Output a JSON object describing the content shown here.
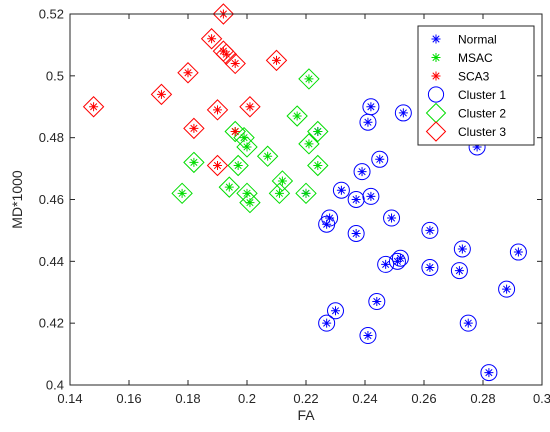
{
  "chart_data": {
    "type": "scatter",
    "title": "",
    "xlabel": "FA",
    "ylabel": "MD*1000",
    "xlim": [
      0.14,
      0.3
    ],
    "ylim": [
      0.4,
      0.52
    ],
    "xticks": [
      0.14,
      0.16,
      0.18,
      0.2,
      0.22,
      0.24,
      0.26,
      0.28,
      0.3
    ],
    "xtick_labels": [
      "0.14",
      "0.16",
      "0.18",
      "0.2",
      "0.22",
      "0.24",
      "0.26",
      "0.28",
      "0.3"
    ],
    "yticks": [
      0.4,
      0.42,
      0.44,
      0.46,
      0.48,
      0.5,
      0.52
    ],
    "ytick_labels": [
      "0.4",
      "0.42",
      "0.44",
      "0.46",
      "0.48",
      "0.5",
      "0.52"
    ],
    "grid": false,
    "legend_position": "top-right",
    "series": [
      {
        "name": "Normal",
        "marker": "asterisk",
        "color": "#0000ff",
        "points": [
          [
            0.242,
            0.49
          ],
          [
            0.241,
            0.485
          ],
          [
            0.253,
            0.488
          ],
          [
            0.224,
            0.482
          ],
          [
            0.22,
            0.462
          ],
          [
            0.278,
            0.477
          ],
          [
            0.245,
            0.473
          ],
          [
            0.239,
            0.469
          ],
          [
            0.232,
            0.463
          ],
          [
            0.242,
            0.461
          ],
          [
            0.237,
            0.46
          ],
          [
            0.249,
            0.454
          ],
          [
            0.228,
            0.454
          ],
          [
            0.227,
            0.452
          ],
          [
            0.262,
            0.45
          ],
          [
            0.237,
            0.449
          ],
          [
            0.273,
            0.444
          ],
          [
            0.292,
            0.443
          ],
          [
            0.252,
            0.441
          ],
          [
            0.251,
            0.44
          ],
          [
            0.247,
            0.439
          ],
          [
            0.262,
            0.438
          ],
          [
            0.272,
            0.437
          ],
          [
            0.288,
            0.431
          ],
          [
            0.244,
            0.427
          ],
          [
            0.23,
            0.424
          ],
          [
            0.227,
            0.42
          ],
          [
            0.275,
            0.42
          ],
          [
            0.241,
            0.416
          ],
          [
            0.282,
            0.404
          ]
        ]
      },
      {
        "name": "MSAC",
        "marker": "asterisk",
        "color": "#00dd00",
        "points": [
          [
            0.221,
            0.499
          ],
          [
            0.217,
            0.487
          ],
          [
            0.224,
            0.482
          ],
          [
            0.196,
            0.482
          ],
          [
            0.199,
            0.48
          ],
          [
            0.221,
            0.478
          ],
          [
            0.2,
            0.477
          ],
          [
            0.207,
            0.474
          ],
          [
            0.182,
            0.472
          ],
          [
            0.224,
            0.471
          ],
          [
            0.197,
            0.471
          ],
          [
            0.212,
            0.466
          ],
          [
            0.194,
            0.464
          ],
          [
            0.178,
            0.462
          ],
          [
            0.211,
            0.462
          ],
          [
            0.2,
            0.462
          ],
          [
            0.22,
            0.462
          ],
          [
            0.201,
            0.459
          ]
        ]
      },
      {
        "name": "SCA3",
        "marker": "asterisk",
        "color": "#ff0000",
        "points": [
          [
            0.192,
            0.52
          ],
          [
            0.188,
            0.512
          ],
          [
            0.192,
            0.508
          ],
          [
            0.193,
            0.507
          ],
          [
            0.196,
            0.504
          ],
          [
            0.21,
            0.505
          ],
          [
            0.18,
            0.501
          ],
          [
            0.171,
            0.494
          ],
          [
            0.148,
            0.49
          ],
          [
            0.201,
            0.49
          ],
          [
            0.19,
            0.489
          ],
          [
            0.182,
            0.483
          ],
          [
            0.196,
            0.482
          ],
          [
            0.19,
            0.471
          ]
        ]
      },
      {
        "name": "Cluster 1",
        "marker": "circle",
        "color": "#0000ff",
        "points": [
          [
            0.242,
            0.49
          ],
          [
            0.241,
            0.485
          ],
          [
            0.253,
            0.488
          ],
          [
            0.278,
            0.477
          ],
          [
            0.245,
            0.473
          ],
          [
            0.239,
            0.469
          ],
          [
            0.232,
            0.463
          ],
          [
            0.242,
            0.461
          ],
          [
            0.237,
            0.46
          ],
          [
            0.249,
            0.454
          ],
          [
            0.228,
            0.454
          ],
          [
            0.227,
            0.452
          ],
          [
            0.262,
            0.45
          ],
          [
            0.237,
            0.449
          ],
          [
            0.273,
            0.444
          ],
          [
            0.292,
            0.443
          ],
          [
            0.252,
            0.441
          ],
          [
            0.251,
            0.44
          ],
          [
            0.247,
            0.439
          ],
          [
            0.262,
            0.438
          ],
          [
            0.272,
            0.437
          ],
          [
            0.288,
            0.431
          ],
          [
            0.244,
            0.427
          ],
          [
            0.23,
            0.424
          ],
          [
            0.227,
            0.42
          ],
          [
            0.275,
            0.42
          ],
          [
            0.241,
            0.416
          ],
          [
            0.282,
            0.404
          ]
        ]
      },
      {
        "name": "Cluster 2",
        "marker": "diamond",
        "color": "#00dd00",
        "points": [
          [
            0.221,
            0.499
          ],
          [
            0.217,
            0.487
          ],
          [
            0.224,
            0.482
          ],
          [
            0.196,
            0.482
          ],
          [
            0.199,
            0.48
          ],
          [
            0.221,
            0.478
          ],
          [
            0.2,
            0.477
          ],
          [
            0.207,
            0.474
          ],
          [
            0.182,
            0.472
          ],
          [
            0.224,
            0.471
          ],
          [
            0.197,
            0.471
          ],
          [
            0.212,
            0.466
          ],
          [
            0.194,
            0.464
          ],
          [
            0.178,
            0.462
          ],
          [
            0.211,
            0.462
          ],
          [
            0.2,
            0.462
          ],
          [
            0.22,
            0.462
          ],
          [
            0.201,
            0.459
          ]
        ]
      },
      {
        "name": "Cluster 3",
        "marker": "diamond",
        "color": "#ff0000",
        "points": [
          [
            0.192,
            0.52
          ],
          [
            0.188,
            0.512
          ],
          [
            0.192,
            0.508
          ],
          [
            0.193,
            0.507
          ],
          [
            0.196,
            0.504
          ],
          [
            0.21,
            0.505
          ],
          [
            0.18,
            0.501
          ],
          [
            0.171,
            0.494
          ],
          [
            0.148,
            0.49
          ],
          [
            0.201,
            0.49
          ],
          [
            0.19,
            0.489
          ],
          [
            0.182,
            0.483
          ],
          [
            0.19,
            0.471
          ]
        ]
      }
    ]
  }
}
